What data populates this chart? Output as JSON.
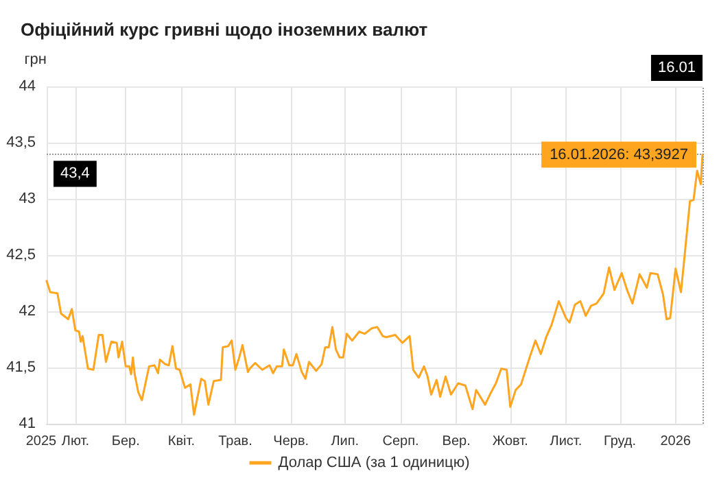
{
  "chart_data": {
    "type": "line",
    "title": "Офіційний курс гривні щодо іноземних валют",
    "ylabel": "грн",
    "x": [
      "2025-01-16",
      "2025-01-18",
      "2025-01-22",
      "2025-01-24",
      "2025-01-28",
      "2025-01-30",
      "2025-02-01",
      "2025-02-03",
      "2025-02-04",
      "2025-02-05",
      "2025-02-08",
      "2025-02-11",
      "2025-02-14",
      "2025-02-16",
      "2025-02-18",
      "2025-02-21",
      "2025-02-24",
      "2025-02-25",
      "2025-02-27",
      "2025-03-01",
      "2025-03-03",
      "2025-03-04",
      "2025-03-05",
      "2025-03-06",
      "2025-03-08",
      "2025-03-10",
      "2025-03-14",
      "2025-03-17",
      "2025-03-19",
      "2025-03-20",
      "2025-03-23",
      "2025-03-25",
      "2025-03-27",
      "2025-03-29",
      "2025-03-31",
      "2025-04-03",
      "2025-04-06",
      "2025-04-08",
      "2025-04-12",
      "2025-04-14",
      "2025-04-16",
      "2025-04-19",
      "2025-04-23",
      "2025-04-24",
      "2025-04-27",
      "2025-04-29",
      "2025-05-01",
      "2025-05-03",
      "2025-05-05",
      "2025-05-08",
      "2025-05-09",
      "2025-05-12",
      "2025-05-16",
      "2025-05-20",
      "2025-05-22",
      "2025-05-24",
      "2025-05-27",
      "2025-05-28",
      "2025-05-31",
      "2025-06-02",
      "2025-06-04",
      "2025-06-07",
      "2025-06-09",
      "2025-06-11",
      "2025-06-15",
      "2025-06-18",
      "2025-06-20",
      "2025-06-22",
      "2025-06-24",
      "2025-06-26",
      "2025-06-28",
      "2025-06-30",
      "2025-07-02",
      "2025-07-05",
      "2025-07-09",
      "2025-07-12",
      "2025-07-16",
      "2025-07-19",
      "2025-07-22",
      "2025-07-24",
      "2025-07-29",
      "2025-08-02",
      "2025-08-06",
      "2025-08-08",
      "2025-08-11",
      "2025-08-14",
      "2025-08-16",
      "2025-08-18",
      "2025-08-21",
      "2025-08-23",
      "2025-08-26",
      "2025-08-29",
      "2025-09-02",
      "2025-09-06",
      "2025-09-10",
      "2025-09-12",
      "2025-09-17",
      "2025-09-20",
      "2025-09-23",
      "2025-09-26",
      "2025-09-29",
      "2025-10-01",
      "2025-10-04",
      "2025-10-07",
      "2025-10-10",
      "2025-10-12",
      "2025-10-15",
      "2025-10-18",
      "2025-10-21",
      "2025-10-24",
      "2025-10-28",
      "2025-11-01",
      "2025-11-03",
      "2025-11-06",
      "2025-11-09",
      "2025-11-12",
      "2025-11-15",
      "2025-11-18",
      "2025-11-22",
      "2025-11-25",
      "2025-11-28",
      "2025-12-02",
      "2025-12-05",
      "2025-12-08",
      "2025-12-12",
      "2025-12-16",
      "2025-12-18",
      "2025-12-22",
      "2025-12-25",
      "2025-12-27",
      "2025-12-29",
      "2026-01-01",
      "2026-01-04",
      "2026-01-06",
      "2026-01-09",
      "2026-01-11",
      "2026-01-13",
      "2026-01-15",
      "2026-01-16"
    ],
    "series": [
      {
        "name": "Долар США (за 1 одиницю)",
        "color": "#ffa51f",
        "values": [
          42.27,
          42.17,
          42.16,
          41.98,
          41.93,
          42.02,
          41.83,
          41.82,
          41.73,
          41.78,
          41.49,
          41.48,
          41.79,
          41.79,
          41.55,
          41.73,
          41.72,
          41.59,
          41.73,
          41.51,
          41.51,
          41.44,
          41.59,
          41.44,
          41.28,
          41.21,
          41.51,
          41.52,
          41.45,
          41.57,
          41.53,
          41.52,
          41.69,
          41.49,
          41.48,
          41.32,
          41.35,
          41.08,
          41.4,
          41.38,
          41.17,
          41.38,
          41.39,
          41.68,
          41.69,
          41.74,
          41.48,
          41.58,
          41.7,
          41.46,
          41.49,
          41.54,
          41.48,
          41.52,
          41.45,
          41.51,
          41.51,
          41.66,
          41.52,
          41.52,
          41.62,
          41.46,
          41.4,
          41.55,
          41.47,
          41.53,
          41.68,
          41.68,
          41.86,
          41.66,
          41.59,
          41.59,
          41.8,
          41.74,
          41.82,
          41.8,
          41.85,
          41.86,
          41.78,
          41.77,
          41.79,
          41.72,
          41.78,
          41.48,
          41.41,
          41.51,
          41.42,
          41.26,
          41.39,
          41.24,
          41.42,
          41.26,
          41.36,
          41.34,
          41.13,
          41.3,
          41.17,
          41.27,
          41.36,
          41.49,
          41.48,
          41.15,
          41.3,
          41.35,
          41.5,
          41.6,
          41.74,
          41.62,
          41.77,
          41.88,
          42.09,
          41.94,
          41.9,
          42.06,
          42.09,
          41.96,
          42.05,
          42.07,
          42.16,
          42.39,
          42.19,
          42.34,
          42.19,
          42.07,
          42.33,
          42.21,
          42.34,
          42.33,
          42.15,
          41.93,
          41.94,
          42.38,
          42.17,
          42.49,
          42.98,
          42.99,
          43.25,
          43.13,
          43.3927
        ]
      }
    ],
    "xlim": [
      "2025-01-16",
      "2026-01-16"
    ],
    "xticks": [
      {
        "value": "2025-01-16",
        "label": "2025"
      },
      {
        "value": "2025-02-01",
        "label": "Лют."
      },
      {
        "value": "2025-03-01",
        "label": "Бер."
      },
      {
        "value": "2025-04-01",
        "label": "Квіт."
      },
      {
        "value": "2025-05-01",
        "label": "Трав."
      },
      {
        "value": "2025-06-01",
        "label": "Черв."
      },
      {
        "value": "2025-07-01",
        "label": "Лип."
      },
      {
        "value": "2025-08-01",
        "label": "Серп."
      },
      {
        "value": "2025-09-01",
        "label": "Вер."
      },
      {
        "value": "2025-10-01",
        "label": "Жовт."
      },
      {
        "value": "2025-11-01",
        "label": "Лист."
      },
      {
        "value": "2025-12-01",
        "label": "Груд."
      },
      {
        "value": "2026-01-01",
        "label": "2026"
      }
    ],
    "ylim": [
      41,
      44
    ],
    "yticks": [
      41,
      {
        "value": 41.5,
        "label": "41,5"
      },
      42,
      {
        "value": 42.5,
        "label": "42,5"
      },
      43,
      {
        "value": 43.5,
        "label": "43,5"
      },
      44
    ],
    "ref_lines": [
      {
        "axis": "y",
        "value": 43.4,
        "label": "43,4",
        "line_style": "dotted"
      },
      {
        "axis": "x",
        "value": "2026-01-16",
        "label": "16.01",
        "line_style": "dotted"
      }
    ],
    "annotations": [
      {
        "text": "16.01.2026: 43,3927",
        "x": "2026-01-16",
        "y": 43.3927
      }
    ],
    "grid": true,
    "legend": "bottom",
    "marker": "none",
    "line_style": "solid"
  }
}
